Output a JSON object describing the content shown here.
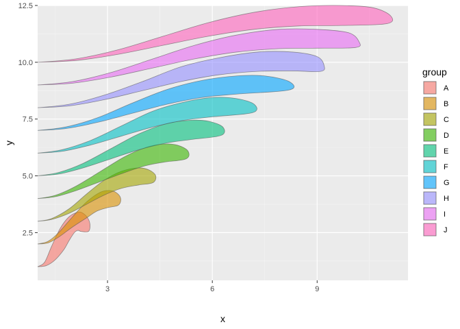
{
  "chart_data": {
    "type": "area",
    "title": "",
    "xlabel": "x",
    "ylabel": "y",
    "xlim": [
      1.0,
      11.6
    ],
    "ylim": [
      0.4,
      12.5
    ],
    "xticks": [
      3,
      6,
      9
    ],
    "yticks": [
      2.5,
      5.0,
      7.5,
      10.0,
      12.5
    ],
    "ytick_labels": [
      "2.5",
      "5.0",
      "7.5",
      "10.0",
      "12.5"
    ],
    "grid": true,
    "legend": {
      "title": "group",
      "position": "right"
    },
    "series": [
      {
        "name": "A",
        "color": "#F8766D",
        "start_x": 1,
        "start_y": 1,
        "top": [
          [
            1,
            1
          ],
          [
            1.2,
            1.2
          ],
          [
            1.4,
            1.9
          ],
          [
            1.65,
            2.7
          ],
          [
            1.9,
            3.2
          ],
          [
            2.15,
            3.4
          ],
          [
            2.3,
            3.35
          ],
          [
            2.45,
            3.1
          ],
          [
            2.5,
            2.8
          ],
          [
            2.45,
            2.55
          ]
        ],
        "bottom": [
          [
            1,
            1
          ],
          [
            1.25,
            1.05
          ],
          [
            1.5,
            1.3
          ],
          [
            1.75,
            1.75
          ],
          [
            1.9,
            2.15
          ],
          [
            2.05,
            2.5
          ],
          [
            2.15,
            2.6
          ],
          [
            2.25,
            2.55
          ]
        ]
      },
      {
        "name": "B",
        "color": "#D89000",
        "start_x": 1,
        "start_y": 2,
        "top": [
          [
            1,
            2
          ],
          [
            1.3,
            2.12
          ],
          [
            1.6,
            2.5
          ],
          [
            2.0,
            3.2
          ],
          [
            2.4,
            3.85
          ],
          [
            2.8,
            4.28
          ],
          [
            3.1,
            4.35
          ],
          [
            3.3,
            4.2
          ],
          [
            3.38,
            3.95
          ],
          [
            3.3,
            3.7
          ]
        ],
        "bottom": [
          [
            1,
            2
          ],
          [
            1.3,
            2.05
          ],
          [
            1.6,
            2.3
          ],
          [
            2.0,
            2.75
          ],
          [
            2.4,
            3.15
          ],
          [
            2.7,
            3.45
          ],
          [
            3.0,
            3.6
          ]
        ]
      },
      {
        "name": "C",
        "color": "#A3A500",
        "start_x": 1,
        "start_y": 3,
        "top": [
          [
            1,
            3
          ],
          [
            1.4,
            3.12
          ],
          [
            1.9,
            3.55
          ],
          [
            2.4,
            4.2
          ],
          [
            2.9,
            4.8
          ],
          [
            3.4,
            5.2
          ],
          [
            3.9,
            5.35
          ],
          [
            4.2,
            5.25
          ],
          [
            4.38,
            5.0
          ],
          [
            4.3,
            4.7
          ]
        ],
        "bottom": [
          [
            1,
            3
          ],
          [
            1.4,
            3.08
          ],
          [
            1.9,
            3.35
          ],
          [
            2.4,
            3.75
          ],
          [
            2.9,
            4.15
          ],
          [
            3.4,
            4.45
          ],
          [
            3.9,
            4.6
          ]
        ]
      },
      {
        "name": "D",
        "color": "#39B600",
        "start_x": 1,
        "start_y": 4,
        "top": [
          [
            1,
            4
          ],
          [
            1.5,
            4.14
          ],
          [
            2.1,
            4.55
          ],
          [
            2.8,
            5.2
          ],
          [
            3.5,
            5.85
          ],
          [
            4.1,
            6.25
          ],
          [
            4.6,
            6.4
          ],
          [
            5.0,
            6.35
          ],
          [
            5.3,
            6.1
          ],
          [
            5.25,
            5.75
          ]
        ],
        "bottom": [
          [
            1,
            4
          ],
          [
            1.5,
            4.08
          ],
          [
            2.1,
            4.35
          ],
          [
            2.8,
            4.75
          ],
          [
            3.5,
            5.15
          ],
          [
            4.1,
            5.45
          ],
          [
            4.6,
            5.6
          ]
        ]
      },
      {
        "name": "E",
        "color": "#00BF7D",
        "start_x": 1,
        "start_y": 5,
        "top": [
          [
            1,
            5
          ],
          [
            1.6,
            5.15
          ],
          [
            2.3,
            5.55
          ],
          [
            3.1,
            6.2
          ],
          [
            3.9,
            6.85
          ],
          [
            4.7,
            7.3
          ],
          [
            5.4,
            7.45
          ],
          [
            5.9,
            7.4
          ],
          [
            6.3,
            7.15
          ],
          [
            6.25,
            6.78
          ]
        ],
        "bottom": [
          [
            1,
            5
          ],
          [
            1.6,
            5.08
          ],
          [
            2.3,
            5.35
          ],
          [
            3.1,
            5.75
          ],
          [
            3.9,
            6.15
          ],
          [
            4.7,
            6.45
          ],
          [
            5.4,
            6.6
          ]
        ]
      },
      {
        "name": "F",
        "color": "#00BFC4",
        "start_x": 1,
        "start_y": 6,
        "top": [
          [
            1,
            6
          ],
          [
            1.7,
            6.15
          ],
          [
            2.5,
            6.55
          ],
          [
            3.4,
            7.2
          ],
          [
            4.3,
            7.85
          ],
          [
            5.2,
            8.25
          ],
          [
            6.0,
            8.45
          ],
          [
            6.7,
            8.4
          ],
          [
            7.2,
            8.15
          ],
          [
            7.15,
            7.78
          ]
        ],
        "bottom": [
          [
            1,
            6
          ],
          [
            1.7,
            6.08
          ],
          [
            2.5,
            6.35
          ],
          [
            3.4,
            6.75
          ],
          [
            4.3,
            7.15
          ],
          [
            5.2,
            7.45
          ],
          [
            6.0,
            7.6
          ]
        ]
      },
      {
        "name": "G",
        "color": "#00A5FF",
        "start_x": 1,
        "start_y": 7,
        "top": [
          [
            1,
            7
          ],
          [
            1.8,
            7.15
          ],
          [
            2.7,
            7.55
          ],
          [
            3.7,
            8.2
          ],
          [
            4.7,
            8.8
          ],
          [
            5.7,
            9.2
          ],
          [
            6.7,
            9.4
          ],
          [
            7.5,
            9.4
          ],
          [
            8.2,
            9.15
          ],
          [
            8.2,
            8.78
          ]
        ],
        "bottom": [
          [
            1,
            7
          ],
          [
            1.8,
            7.08
          ],
          [
            2.7,
            7.35
          ],
          [
            3.7,
            7.75
          ],
          [
            4.7,
            8.15
          ],
          [
            5.7,
            8.45
          ],
          [
            6.7,
            8.6
          ]
        ]
      },
      {
        "name": "H",
        "color": "#9590FF",
        "start_x": 1,
        "start_y": 8,
        "top": [
          [
            1,
            8
          ],
          [
            1.9,
            8.15
          ],
          [
            2.9,
            8.55
          ],
          [
            4.0,
            9.15
          ],
          [
            5.1,
            9.8
          ],
          [
            6.2,
            10.2
          ],
          [
            7.3,
            10.45
          ],
          [
            8.3,
            10.45
          ],
          [
            9.0,
            10.25
          ],
          [
            9.2,
            9.85
          ],
          [
            9.1,
            9.6
          ]
        ],
        "bottom": [
          [
            1,
            8
          ],
          [
            1.9,
            8.08
          ],
          [
            2.9,
            8.35
          ],
          [
            4.0,
            8.75
          ],
          [
            5.1,
            9.15
          ],
          [
            6.2,
            9.45
          ],
          [
            7.3,
            9.6
          ],
          [
            8.3,
            9.62
          ]
        ]
      },
      {
        "name": "I",
        "color": "#E76BF3",
        "start_x": 1,
        "start_y": 9,
        "top": [
          [
            1,
            9
          ],
          [
            2.0,
            9.15
          ],
          [
            3.1,
            9.55
          ],
          [
            4.3,
            10.15
          ],
          [
            5.5,
            10.75
          ],
          [
            6.7,
            11.2
          ],
          [
            7.9,
            11.45
          ],
          [
            9.0,
            11.45
          ],
          [
            9.9,
            11.3
          ],
          [
            10.2,
            10.9
          ],
          [
            10.1,
            10.65
          ]
        ],
        "bottom": [
          [
            1,
            9
          ],
          [
            2.0,
            9.08
          ],
          [
            3.1,
            9.35
          ],
          [
            4.3,
            9.75
          ],
          [
            5.5,
            10.15
          ],
          [
            6.7,
            10.45
          ],
          [
            7.9,
            10.6
          ],
          [
            9.0,
            10.62
          ]
        ]
      },
      {
        "name": "J",
        "color": "#FF62BC",
        "start_x": 1,
        "start_y": 10,
        "top": [
          [
            1,
            10
          ],
          [
            2.1,
            10.15
          ],
          [
            3.3,
            10.55
          ],
          [
            4.6,
            11.15
          ],
          [
            5.9,
            11.75
          ],
          [
            7.2,
            12.2
          ],
          [
            8.5,
            12.45
          ],
          [
            9.7,
            12.5
          ],
          [
            10.6,
            12.4
          ],
          [
            11.1,
            12.05
          ],
          [
            11.0,
            11.7
          ]
        ],
        "bottom": [
          [
            1,
            10
          ],
          [
            2.1,
            10.08
          ],
          [
            3.3,
            10.35
          ],
          [
            4.6,
            10.75
          ],
          [
            5.9,
            11.15
          ],
          [
            7.2,
            11.45
          ],
          [
            8.5,
            11.6
          ],
          [
            9.7,
            11.62
          ]
        ]
      }
    ]
  }
}
